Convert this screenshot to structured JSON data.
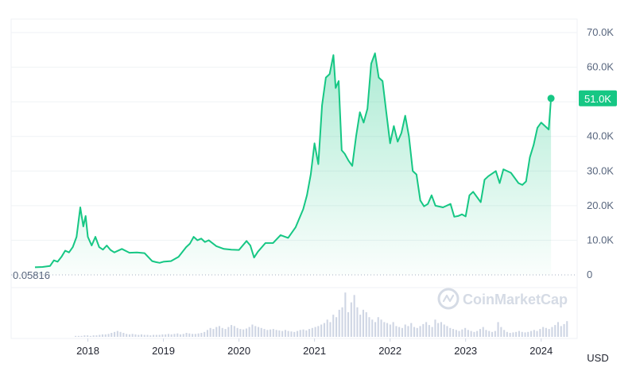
{
  "chart_data": {
    "type": "area",
    "title": "",
    "xlabel": "",
    "ylabel": "",
    "currency_label": "USD",
    "watermark": "CoinMarketCap",
    "baseline_label": "0.05816",
    "last_price_label": "51.0K",
    "x_ticks": [
      "2018",
      "2019",
      "2020",
      "2021",
      "2022",
      "2023",
      "2024"
    ],
    "y_ticks": [
      {
        "value": 0,
        "label": "0"
      },
      {
        "value": 10000,
        "label": "10.0K"
      },
      {
        "value": 20000,
        "label": "20.0K"
      },
      {
        "value": 30000,
        "label": "30.0K"
      },
      {
        "value": 40000,
        "label": "40.0K"
      },
      {
        "value": 50000,
        "label": "50.0K"
      },
      {
        "value": 60000,
        "label": "60.0K"
      },
      {
        "value": 70000,
        "label": "70.0K"
      }
    ],
    "ylim": [
      0,
      70000
    ],
    "xlim": [
      2017.3,
      2024.35
    ],
    "grid": true,
    "colors": {
      "line": "#16c784",
      "area_top": "#16c784",
      "label_bg": "#16c784",
      "volume": "#cfd6e4",
      "axis_text": "#58667e"
    },
    "series": [
      {
        "x": [
          2017.3,
          2017.4,
          2017.5,
          2017.55,
          2017.6,
          2017.65,
          2017.7,
          2017.75,
          2017.8,
          2017.85,
          2017.9,
          2017.94,
          2017.97,
          2018.0,
          2018.05,
          2018.1,
          2018.15,
          2018.2,
          2018.25,
          2018.3,
          2018.35,
          2018.45,
          2018.55,
          2018.65,
          2018.75,
          2018.85,
          2018.9,
          2018.95,
          2019.0,
          2019.1,
          2019.2,
          2019.3,
          2019.35,
          2019.4,
          2019.45,
          2019.5,
          2019.55,
          2019.6,
          2019.7,
          2019.8,
          2019.9,
          2020.0,
          2020.1,
          2020.15,
          2020.2,
          2020.25,
          2020.35,
          2020.45,
          2020.55,
          2020.65,
          2020.75,
          2020.85,
          2020.9,
          2020.95,
          2021.0,
          2021.05,
          2021.1,
          2021.15,
          2021.2,
          2021.25,
          2021.28,
          2021.32,
          2021.36,
          2021.4,
          2021.45,
          2021.5,
          2021.55,
          2021.6,
          2021.65,
          2021.7,
          2021.75,
          2021.8,
          2021.85,
          2021.9,
          2021.95,
          2022.0,
          2022.05,
          2022.1,
          2022.15,
          2022.2,
          2022.25,
          2022.3,
          2022.35,
          2022.4,
          2022.45,
          2022.5,
          2022.55,
          2022.6,
          2022.7,
          2022.8,
          2022.85,
          2022.9,
          2022.95,
          2023.0,
          2023.05,
          2023.1,
          2023.2,
          2023.25,
          2023.3,
          2023.4,
          2023.45,
          2023.5,
          2023.6,
          2023.7,
          2023.75,
          2023.8,
          2023.85,
          2023.9,
          2023.95,
          2024.0,
          2024.05,
          2024.1,
          2024.13
        ],
        "values": [
          2200,
          2300,
          2600,
          4200,
          3800,
          5200,
          7000,
          6500,
          8000,
          11000,
          19500,
          14000,
          17000,
          11000,
          8500,
          11000,
          8000,
          7300,
          8500,
          7200,
          6500,
          7500,
          6400,
          6500,
          6300,
          4000,
          3700,
          3500,
          3800,
          4000,
          5200,
          8000,
          9000,
          11000,
          10000,
          10500,
          9500,
          10000,
          8300,
          7500,
          7300,
          7200,
          9800,
          8500,
          5000,
          6700,
          9200,
          9200,
          11500,
          10700,
          13800,
          19000,
          23000,
          29000,
          38000,
          32000,
          49000,
          57000,
          58000,
          63500,
          54000,
          56000,
          36000,
          35000,
          33000,
          31500,
          40000,
          47000,
          44000,
          48000,
          61000,
          64000,
          57000,
          56000,
          47000,
          38000,
          43000,
          38500,
          41000,
          46000,
          40000,
          30000,
          29000,
          21500,
          19800,
          20500,
          23000,
          20000,
          19500,
          20500,
          16800,
          17000,
          17500,
          16900,
          23000,
          24000,
          21000,
          27500,
          28500,
          30000,
          26500,
          30500,
          29500,
          26500,
          26000,
          27000,
          34000,
          37500,
          42500,
          44000,
          43000,
          42000,
          51000
        ]
      }
    ],
    "volume": [
      0.02,
      0.02,
      0.02,
      0.03,
      0.03,
      0.02,
      0.03,
      0.03,
      0.04,
      0.05,
      0.05,
      0.06,
      0.08,
      0.1,
      0.12,
      0.1,
      0.08,
      0.06,
      0.05,
      0.06,
      0.05,
      0.04,
      0.05,
      0.04,
      0.04,
      0.03,
      0.04,
      0.04,
      0.04,
      0.05,
      0.05,
      0.06,
      0.05,
      0.06,
      0.07,
      0.05,
      0.06,
      0.08,
      0.07,
      0.06,
      0.06,
      0.07,
      0.08,
      0.1,
      0.14,
      0.18,
      0.16,
      0.2,
      0.22,
      0.18,
      0.16,
      0.2,
      0.24,
      0.22,
      0.18,
      0.16,
      0.15,
      0.17,
      0.2,
      0.25,
      0.22,
      0.2,
      0.18,
      0.16,
      0.14,
      0.15,
      0.16,
      0.14,
      0.13,
      0.12,
      0.14,
      0.12,
      0.11,
      0.1,
      0.12,
      0.14,
      0.15,
      0.13,
      0.16,
      0.18,
      0.2,
      0.22,
      0.25,
      0.28,
      0.35,
      0.3,
      0.45,
      0.4,
      0.55,
      0.6,
      0.9,
      0.5,
      0.7,
      0.85,
      0.6,
      0.45,
      0.55,
      0.5,
      0.4,
      0.35,
      0.3,
      0.4,
      0.35,
      0.3,
      0.28,
      0.25,
      0.3,
      0.22,
      0.2,
      0.18,
      0.25,
      0.22,
      0.28,
      0.2,
      0.18,
      0.22,
      0.26,
      0.3,
      0.24,
      0.2,
      0.35,
      0.28,
      0.3,
      0.25,
      0.22,
      0.18,
      0.16,
      0.14,
      0.12,
      0.15,
      0.18,
      0.14,
      0.12,
      0.1,
      0.12,
      0.16,
      0.2,
      0.14,
      0.12,
      0.1,
      0.12,
      0.3,
      0.2,
      0.14,
      0.1,
      0.08,
      0.09,
      0.1,
      0.12,
      0.1,
      0.09,
      0.1,
      0.12,
      0.14,
      0.12,
      0.16,
      0.2,
      0.18,
      0.16,
      0.2,
      0.24,
      0.3,
      0.22,
      0.26,
      0.32
    ]
  }
}
